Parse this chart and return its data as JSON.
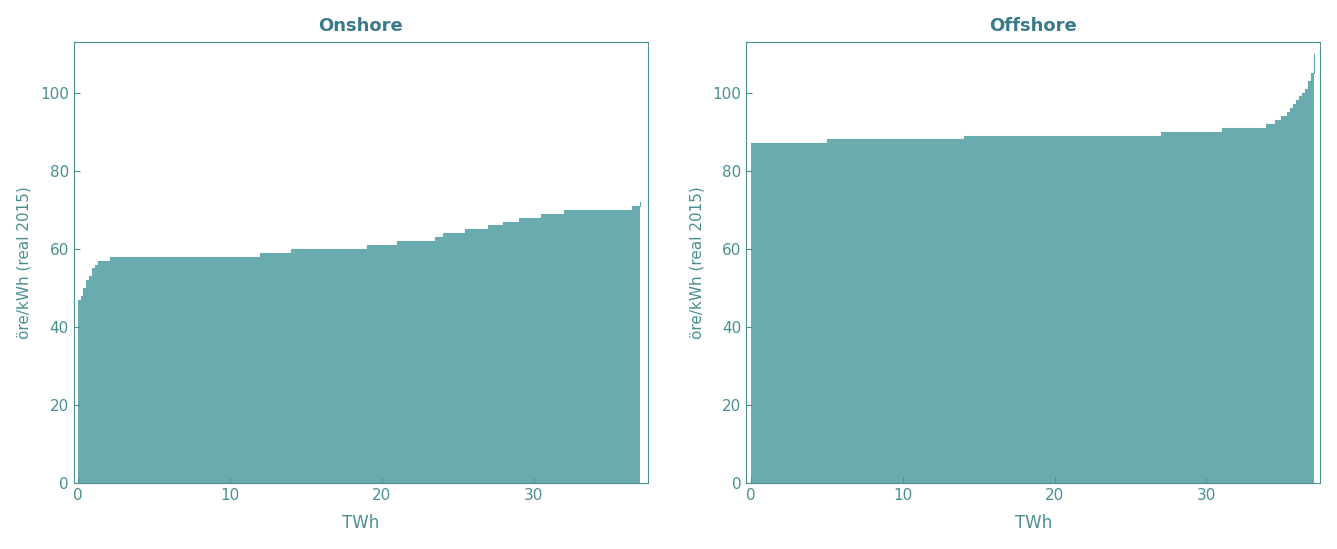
{
  "title_onshore": "Onshore",
  "title_offshore": "Offshore",
  "ylabel": "öre/kWh (real 2015)",
  "xlabel": "TWh",
  "fill_color": "#6aabaf",
  "title_color": "#3a7a8a",
  "text_color": "#4a9090",
  "ylim": [
    0,
    113
  ],
  "xlim": [
    -0.3,
    37.5
  ],
  "yticks": [
    0,
    20,
    40,
    60,
    80,
    100
  ],
  "xticks": [
    0,
    10,
    20,
    30
  ],
  "onshore_x": [
    0.0,
    0.15,
    0.3,
    0.5,
    0.7,
    0.9,
    1.1,
    1.3,
    1.5,
    1.7,
    1.9,
    2.1,
    2.4,
    2.7,
    3.0,
    3.5,
    4.0,
    5.0,
    6.0,
    7.0,
    8.0,
    9.0,
    10.0,
    11.0,
    12.0,
    13.0,
    14.0,
    15.0,
    16.0,
    17.0,
    18.0,
    19.0,
    20.0,
    21.0,
    22.0,
    22.5,
    23.0,
    23.5,
    24.0,
    24.5,
    25.0,
    25.5,
    26.0,
    26.5,
    27.0,
    27.5,
    28.0,
    28.5,
    29.0,
    29.5,
    30.0,
    30.5,
    31.0,
    31.5,
    32.0,
    32.5,
    33.0,
    33.5,
    34.0,
    34.5,
    35.0,
    35.5,
    36.0,
    36.5,
    37.0
  ],
  "onshore_y": [
    47,
    48,
    50,
    52,
    53,
    55,
    56,
    57,
    57,
    57,
    57,
    58,
    58,
    58,
    58,
    58,
    58,
    58,
    58,
    58,
    58,
    58,
    58,
    58,
    59,
    59,
    60,
    60,
    60,
    60,
    60,
    61,
    61,
    62,
    62,
    62,
    62,
    63,
    64,
    64,
    64,
    65,
    65,
    65,
    66,
    66,
    67,
    67,
    68,
    68,
    68,
    69,
    69,
    69,
    70,
    70,
    70,
    70,
    70,
    70,
    70,
    70,
    70,
    71,
    72
  ],
  "offshore_x": [
    0.0,
    0.2,
    0.5,
    1.0,
    1.5,
    2.0,
    2.5,
    3.0,
    4.0,
    5.0,
    6.0,
    7.0,
    8.0,
    9.0,
    10.0,
    11.0,
    12.0,
    13.0,
    14.0,
    15.0,
    16.0,
    17.0,
    18.0,
    19.0,
    20.0,
    21.0,
    22.0,
    23.0,
    24.0,
    25.0,
    26.0,
    27.0,
    28.0,
    29.0,
    30.0,
    30.5,
    31.0,
    31.5,
    32.0,
    32.5,
    33.0,
    33.3,
    33.6,
    33.9,
    34.1,
    34.3,
    34.5,
    34.7,
    34.9,
    35.1,
    35.3,
    35.5,
    35.7,
    35.9,
    36.1,
    36.3,
    36.5,
    36.7,
    36.9,
    37.1
  ],
  "offshore_y": [
    87,
    87,
    87,
    87,
    87,
    87,
    87,
    87,
    87,
    88,
    88,
    88,
    88,
    88,
    88,
    88,
    88,
    88,
    89,
    89,
    89,
    89,
    89,
    89,
    89,
    89,
    89,
    89,
    89,
    89,
    89,
    90,
    90,
    90,
    90,
    90,
    91,
    91,
    91,
    91,
    91,
    91,
    91,
    92,
    92,
    92,
    93,
    93,
    94,
    94,
    95,
    96,
    97,
    98,
    99,
    100,
    101,
    103,
    105,
    110
  ]
}
